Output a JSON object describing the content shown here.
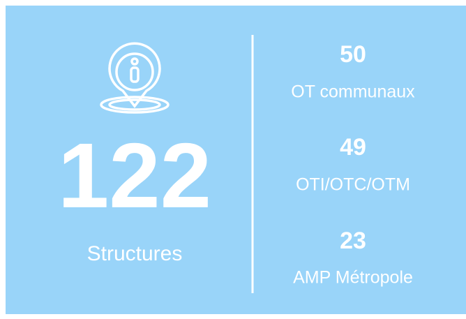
{
  "main": {
    "value": 122,
    "label": "Structures"
  },
  "items": [
    {
      "value": 50,
      "label": "OT communaux"
    },
    {
      "value": 49,
      "label": "OTI/OTC/OTM"
    },
    {
      "value": 23,
      "label": "AMP Métropole"
    }
  ]
}
